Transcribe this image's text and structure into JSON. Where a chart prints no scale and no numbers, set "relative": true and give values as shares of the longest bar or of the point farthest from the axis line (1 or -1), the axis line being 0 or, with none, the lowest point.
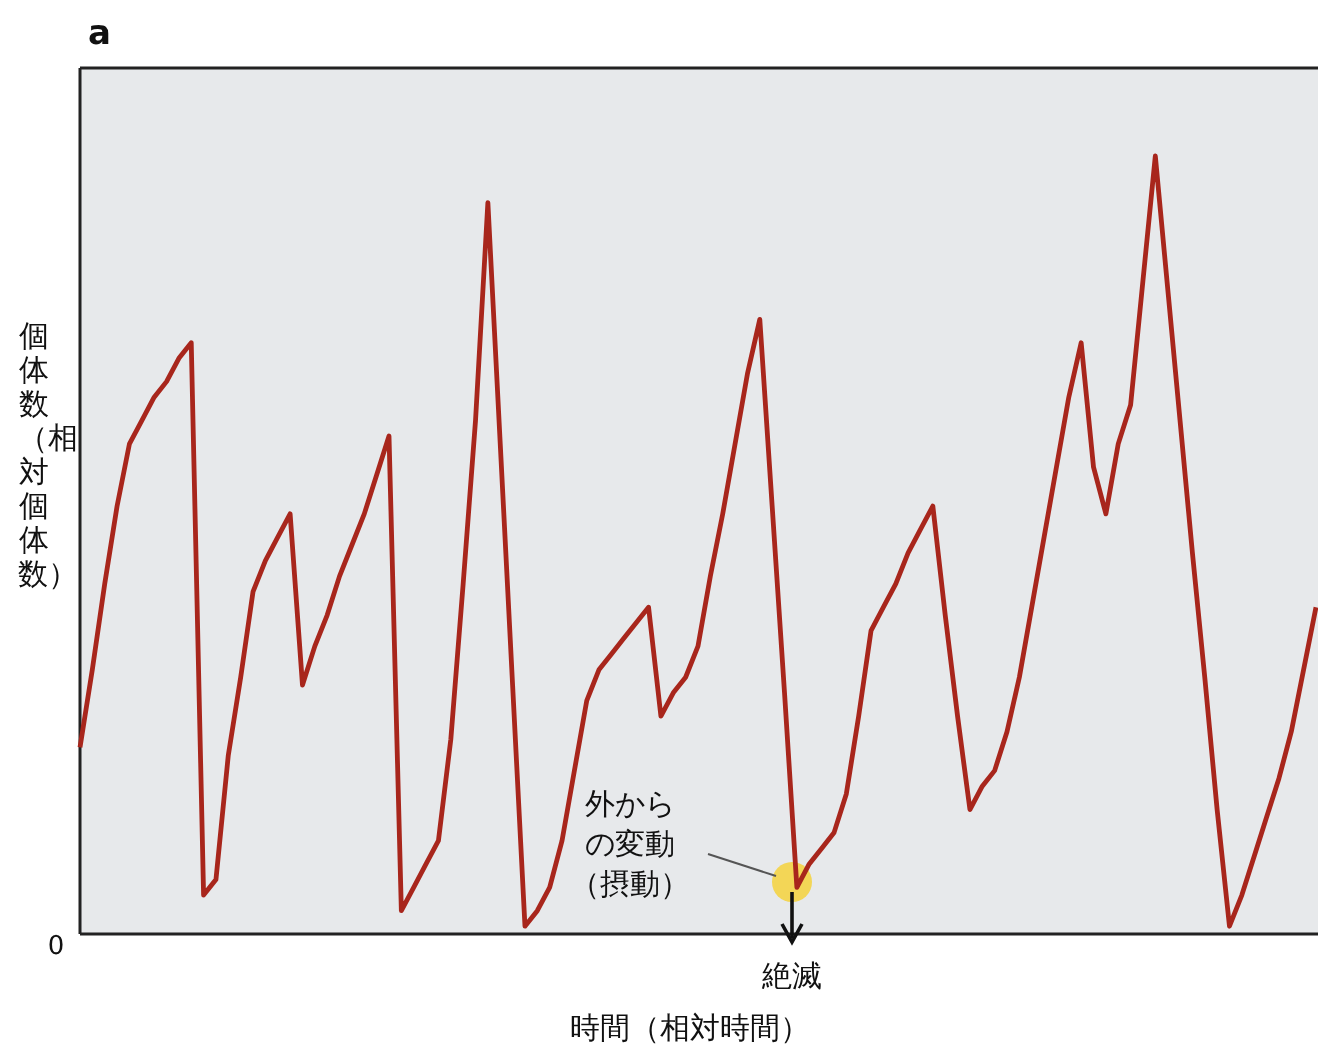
{
  "chart_data": {
    "type": "line",
    "title": "a",
    "xlabel": "時間（相対時間）",
    "ylabel": "個体数（相対個体数）",
    "relative": true,
    "color": "#a8261c",
    "categories": [
      null,
      null,
      null,
      null,
      null,
      null,
      null,
      null,
      null,
      null,
      null,
      null,
      null,
      null,
      null,
      null,
      null,
      null,
      null,
      null,
      null,
      null,
      null,
      null,
      null,
      null,
      null,
      null,
      null,
      null,
      null,
      null,
      null,
      null,
      null,
      null,
      null,
      null,
      null,
      null,
      null,
      null,
      null,
      null,
      null,
      null,
      null,
      null,
      null,
      null,
      null,
      null,
      null,
      null,
      null,
      null,
      null,
      null,
      null,
      null,
      null,
      null,
      null,
      null,
      null,
      null,
      null,
      null,
      null,
      null,
      null,
      null,
      null,
      null,
      null,
      null,
      null,
      null,
      null,
      null,
      null,
      null,
      null,
      null,
      null,
      null,
      null,
      null,
      null,
      null,
      null,
      null,
      null,
      null,
      null,
      null,
      null,
      null,
      null,
      null,
      null
    ],
    "values": [
      0.24,
      0.34,
      0.45,
      0.55,
      0.63,
      0.66,
      0.69,
      0.71,
      0.74,
      0.76,
      0.05,
      0.07,
      0.23,
      0.33,
      0.44,
      0.48,
      0.51,
      0.54,
      0.32,
      0.37,
      0.41,
      0.46,
      0.5,
      0.54,
      0.59,
      0.64,
      0.03,
      0.06,
      0.09,
      0.12,
      0.25,
      0.45,
      0.66,
      0.94,
      0.63,
      0.32,
      0.01,
      0.03,
      0.06,
      0.12,
      0.21,
      0.3,
      0.34,
      0.36,
      0.38,
      0.4,
      0.42,
      0.28,
      0.31,
      0.33,
      0.37,
      0.46,
      0.54,
      0.63,
      0.72,
      0.79,
      0.55,
      0.31,
      0.06,
      0.09,
      0.11,
      0.13,
      0.18,
      0.28,
      0.39,
      0.42,
      0.45,
      0.49,
      0.52,
      0.55,
      0.41,
      0.28,
      0.16,
      0.19,
      0.21,
      0.26,
      0.33,
      0.42,
      0.51,
      0.6,
      0.69,
      0.76,
      0.6,
      0.54,
      0.63,
      0.68,
      0.84,
      1,
      0.83,
      0.66,
      0.49,
      0.33,
      0.16,
      0.01,
      0.05,
      0.1,
      0.15,
      0.2,
      0.26,
      0.34,
      0.42
    ],
    "annotations": [
      "0",
      "外からの変動（摂動）",
      "絶滅"
    ]
  }
}
